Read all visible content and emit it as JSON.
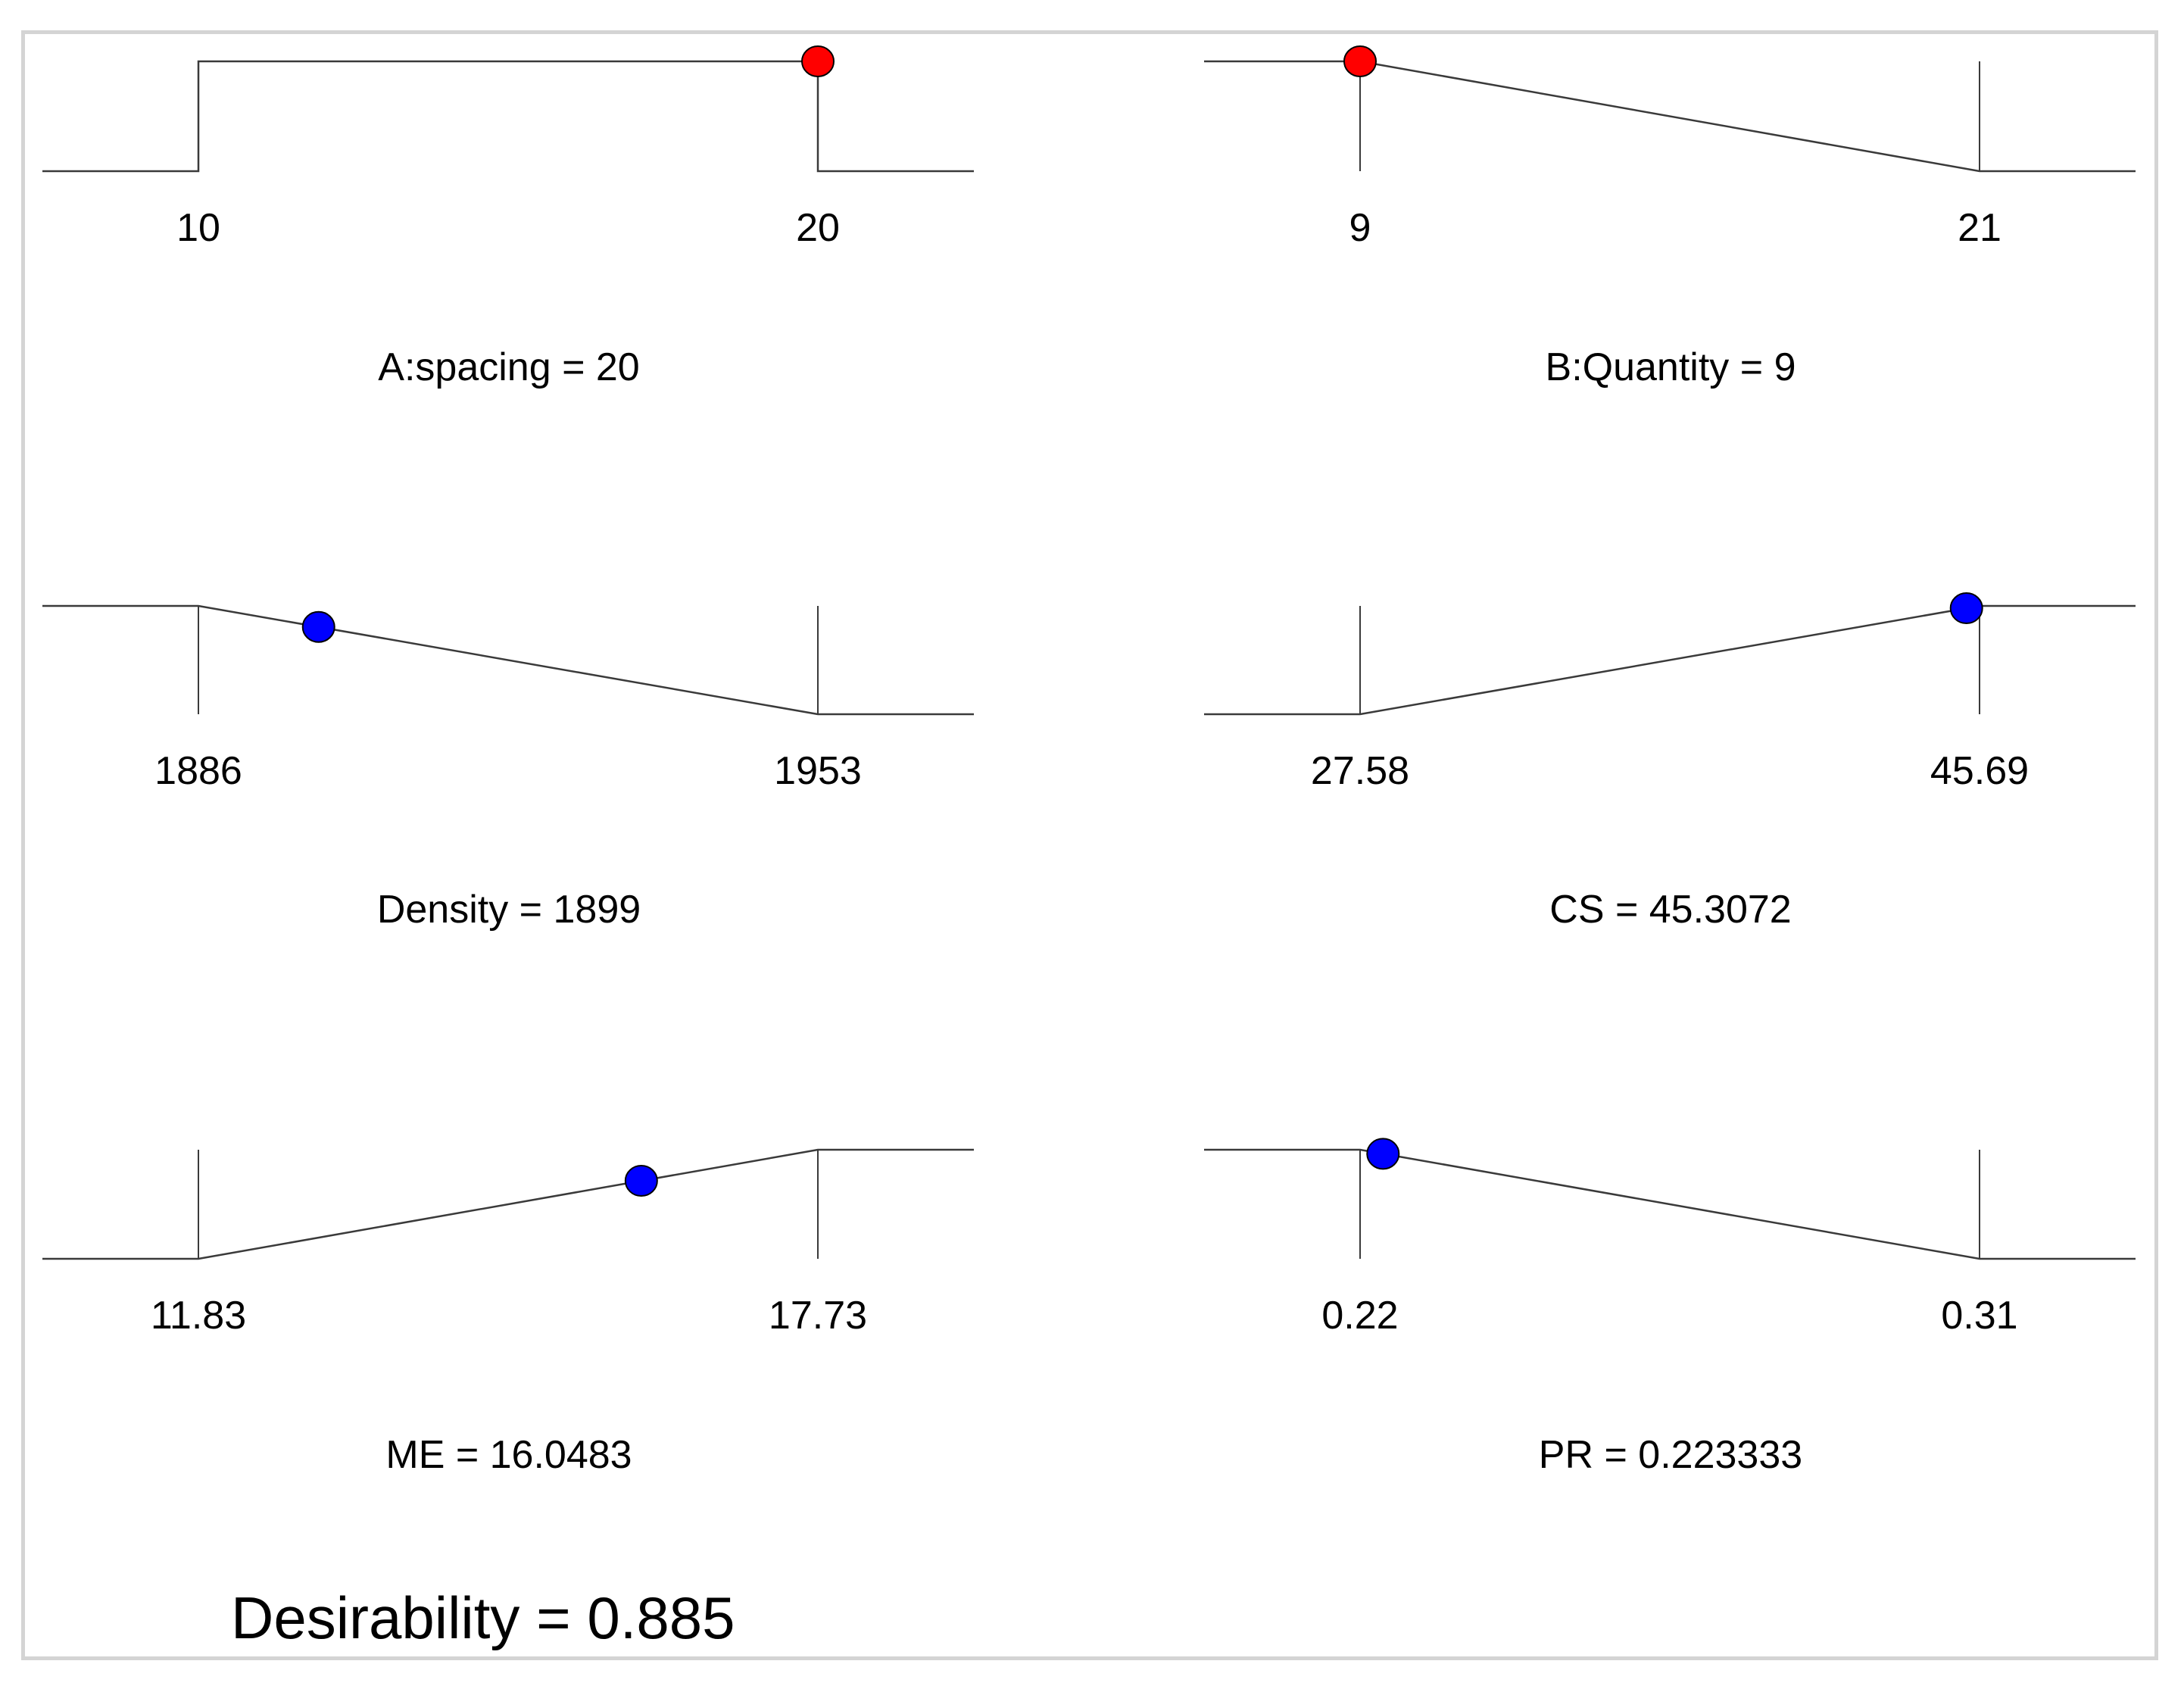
{
  "colors": {
    "line": "#3a3a3a",
    "factor_marker": "#ff0000",
    "response_marker": "#0000ff",
    "frame": "#d4d4d4"
  },
  "chart_data": [
    {
      "type": "line",
      "name": "A:spacing",
      "kind": "factor",
      "goal": "in range",
      "low": 10,
      "high": 20,
      "low_label": "10",
      "high_label": "20",
      "value": 20,
      "title": "A:spacing = 20"
    },
    {
      "type": "line",
      "name": "B:Quantity",
      "kind": "factor",
      "goal": "minimize",
      "low": 9,
      "high": 21,
      "low_label": "9",
      "high_label": "21",
      "value": 9,
      "title": "B:Quantity = 9"
    },
    {
      "type": "line",
      "name": "Density",
      "kind": "response",
      "goal": "minimize",
      "low": 1886,
      "high": 1953,
      "low_label": "1886",
      "high_label": "1953",
      "value": 1899,
      "title": "Density = 1899"
    },
    {
      "type": "line",
      "name": "CS",
      "kind": "response",
      "goal": "maximize",
      "low": 27.58,
      "high": 45.69,
      "low_label": "27.58",
      "high_label": "45.69",
      "value": 45.3072,
      "title": "CS = 45.3072"
    },
    {
      "type": "line",
      "name": "ME",
      "kind": "response",
      "goal": "maximize",
      "low": 11.83,
      "high": 17.73,
      "low_label": "11.83",
      "high_label": "17.73",
      "value": 16.0483,
      "title": "ME = 16.0483"
    },
    {
      "type": "line",
      "name": "PR",
      "kind": "response",
      "goal": "minimize",
      "low": 0.22,
      "high": 0.31,
      "low_label": "0.22",
      "high_label": "0.31",
      "value": 0.223333,
      "title": "PR = 0.223333"
    }
  ],
  "desirability": "Desirability = 0.885"
}
